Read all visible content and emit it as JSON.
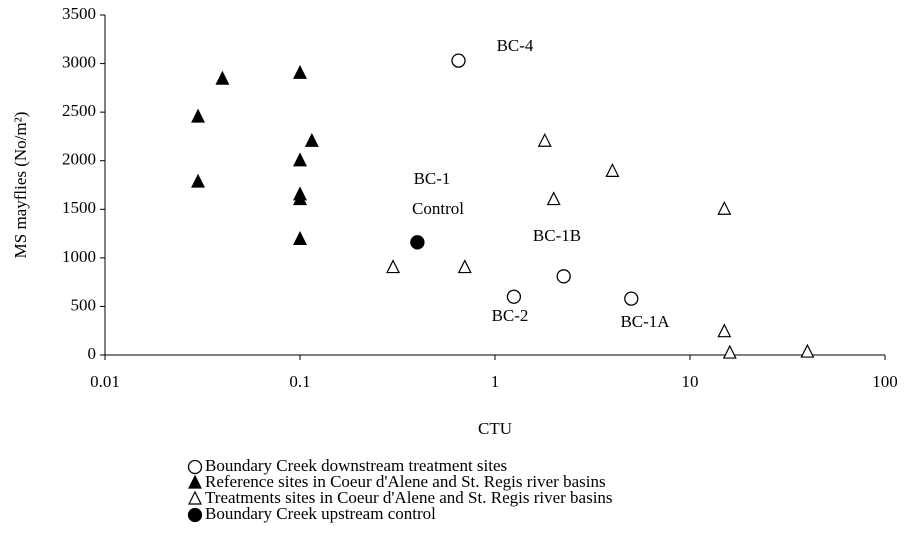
{
  "chart_data": {
    "type": "scatter",
    "x_label": "CTU",
    "y_label": "MS mayflies (No/m²)",
    "log_x": true,
    "xlim": [
      0.01,
      100
    ],
    "xticks": [
      0.01,
      0.1,
      1,
      10,
      100
    ],
    "ylim": [
      0,
      3500
    ],
    "yticks": [
      0,
      500,
      1000,
      1500,
      2000,
      2500,
      3000,
      3500
    ],
    "grid": false,
    "series": [
      {
        "name": "Boundary Creek downstream treatment sites",
        "color": "#000000",
        "marker": "circle",
        "filled": false,
        "x": [
          0.65,
          1.25,
          2.25,
          5
        ],
        "values": [
          3030,
          600,
          810,
          580
        ]
      },
      {
        "name": "Reference sites in Coeur d'Alene and St. Regis river basins",
        "color": "#000000",
        "marker": "triangle",
        "filled": true,
        "x": [
          0.03,
          0.03,
          0.04,
          0.1,
          0.1,
          0.1,
          0.1,
          0.1,
          0.115
        ],
        "values": [
          2450,
          1780,
          2840,
          2900,
          2000,
          1650,
          1600,
          1190,
          2200
        ]
      },
      {
        "name": "Treatments sites in Coeur d'Alene and St. Regis river basins",
        "color": "#000000",
        "marker": "triangle",
        "filled": false,
        "x": [
          0.3,
          0.7,
          1.8,
          2,
          4,
          15,
          15,
          16,
          40
        ],
        "values": [
          900,
          900,
          2200,
          1600,
          1890,
          1500,
          240,
          20,
          30
        ]
      },
      {
        "name": "Boundary Creek upstream control",
        "color": "#000000",
        "marker": "circle",
        "filled": true,
        "x": [
          0.4
        ],
        "values": [
          1160
        ]
      }
    ],
    "annotations": [
      "BC-4",
      "BC-1",
      "Control",
      "BC-1B",
      "BC-2",
      "BC-1A"
    ]
  }
}
